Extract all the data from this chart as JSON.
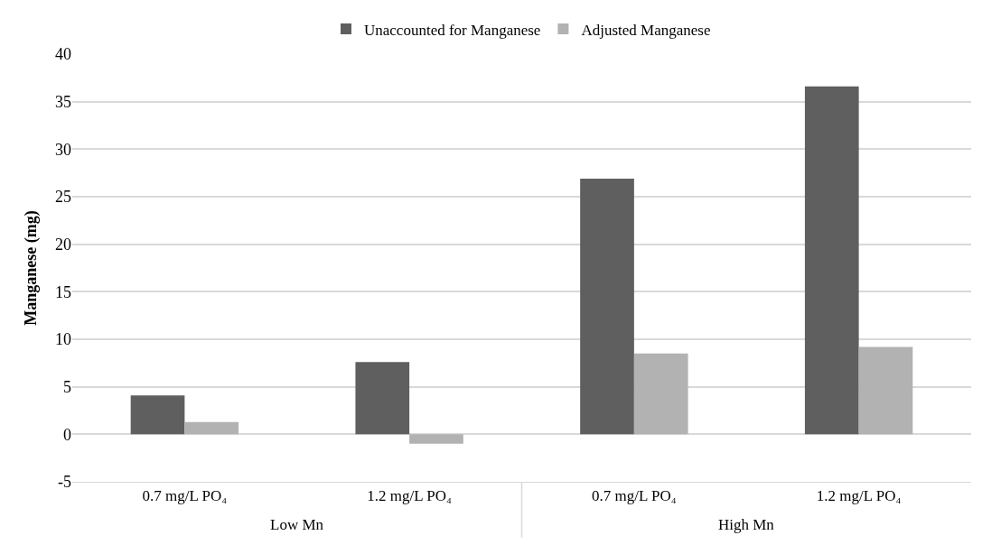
{
  "chart_data": {
    "type": "bar",
    "ylabel": "Manganese (mg)",
    "categories": [
      "0.7 mg/L PO₄",
      "1.2 mg/L PO₄",
      "0.7 mg/L PO₄",
      "1.2 mg/L PO₄"
    ],
    "series": [
      {
        "name": "Unaccounted for Manganese",
        "color": "#5f5f5f",
        "values": [
          4.1,
          7.6,
          26.9,
          36.6
        ]
      },
      {
        "name": "Adjusted Manganese",
        "color": "#b2b2b2",
        "values": [
          1.3,
          -1.0,
          8.5,
          9.2
        ]
      }
    ],
    "annotations": [
      "Low Mn",
      "High Mn"
    ],
    "ylim": [
      -5,
      40
    ],
    "yticks": [
      -5,
      0,
      5,
      10,
      15,
      20,
      25,
      30,
      35,
      40
    ],
    "grid": "y",
    "legend": "top"
  }
}
